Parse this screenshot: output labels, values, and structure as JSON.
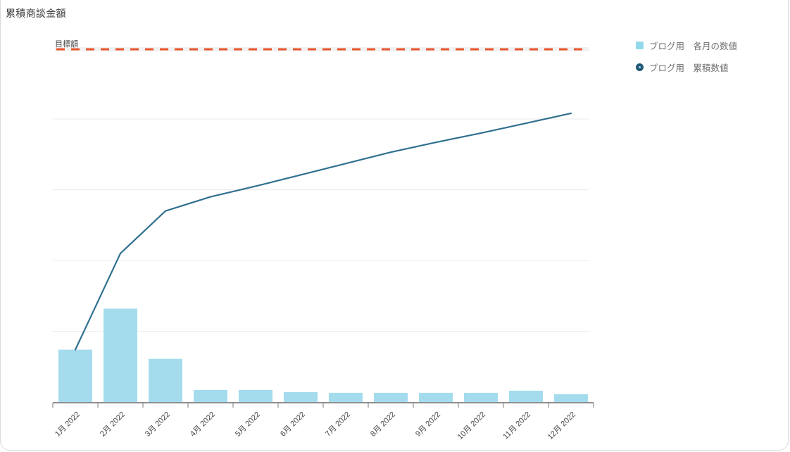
{
  "page": {
    "title": "累積商談金額"
  },
  "target": {
    "label": "目標額",
    "value_units": 5.0,
    "color": "#e8552d"
  },
  "chart_data": {
    "type": "bar",
    "subtype": "combo-bar-line-pareto",
    "title": "累積商談金額",
    "categories": [
      "1月 2022",
      "2月 2022",
      "3月 2022",
      "4月 2022",
      "5月 2022",
      "6月 2022",
      "7月 2022",
      "8月 2022",
      "9月 2022",
      "10月 2022",
      "11月 2022",
      "12月 2022"
    ],
    "series": [
      {
        "name": "ブログ用　各月の数値",
        "type": "bar",
        "color": "#a4dcee",
        "values": [
          0.74,
          1.32,
          0.61,
          0.17,
          0.17,
          0.14,
          0.13,
          0.13,
          0.13,
          0.13,
          0.16,
          0.11
        ]
      },
      {
        "name": "ブログ用　累積数値",
        "type": "line",
        "color": "#31708f",
        "values": [
          0.74,
          2.1,
          2.7,
          2.9,
          3.05,
          3.21,
          3.37,
          3.53,
          3.67,
          3.8,
          3.94,
          4.08
        ]
      }
    ],
    "target_line": {
      "label": "目標額",
      "value": 5.0,
      "style": "dashed",
      "color": "#e8552d"
    },
    "xlabel": "",
    "ylabel": "",
    "ylim": [
      0,
      5.3
    ],
    "units": "relative gridline steps (y axis shows no numeric labels; gridlines at 1,2,3,4 units, target at 5)",
    "grid": true,
    "y_axis_labels_visible": false,
    "x_label_rotation_deg": -45,
    "legend_position": "top-right",
    "colors": {
      "bar": "#a4dcee",
      "line": "#31708f",
      "legend_circle": "#1e5877",
      "target_dash": "#e8552d",
      "target_band": "#f1f1f1",
      "gridline": "#ebebeb",
      "axis": "#8f8f8f",
      "x_label_text": "#454545",
      "title_text": "#3b3b3b",
      "legend_text": "#6e6e6e"
    }
  }
}
